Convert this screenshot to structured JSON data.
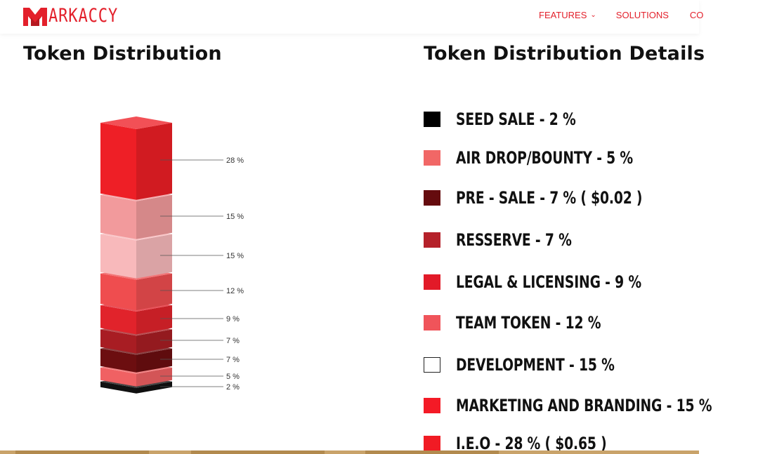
{
  "header": {
    "logo_text": "ARKACCY",
    "brand_color": "#e3202b",
    "nav": [
      {
        "label": "FEATURES",
        "has_dropdown": true
      },
      {
        "label": "SOLUTIONS"
      },
      {
        "label": "CO"
      }
    ]
  },
  "left_title": "Token Distribution",
  "right_title": "Token Distribution Details",
  "chart_data": {
    "type": "bar",
    "subtype": "stacked-3d-column",
    "categories": [
      "Token Distribution"
    ],
    "title": "Token Distribution",
    "segments": [
      {
        "label": "28 %",
        "value": 28,
        "color": "#ee1f26"
      },
      {
        "label": "15 %",
        "value": 15,
        "color": "#f29a9c"
      },
      {
        "label": "15 %",
        "value": 15,
        "color": "#f8b9bb"
      },
      {
        "label": "12 %",
        "value": 12,
        "color": "#ef4d4f"
      },
      {
        "label": "9 %",
        "value": 9,
        "color": "#e1232b"
      },
      {
        "label": "7 %",
        "value": 7,
        "color": "#a81d23"
      },
      {
        "label": "7 %",
        "value": 7,
        "color": "#6c0e10"
      },
      {
        "label": "5 %",
        "value": 5,
        "color": "#f06163"
      },
      {
        "label": "2 %",
        "value": 2,
        "color": "#111111"
      }
    ]
  },
  "legend": [
    {
      "label": "SEED SALE - 2 %",
      "color": "#000000"
    },
    {
      "label": "AIR DROP/BOUNTY - 5 %",
      "color": "#f16766"
    },
    {
      "label": "PRE - SALE - 7 % ( $0.02 )",
      "color": "#650b0e"
    },
    {
      "label": "RESSERVE - 7 %",
      "color": "#b5212a"
    },
    {
      "label": "LEGAL & LICENSING - 9 %",
      "color": "#e21a28"
    },
    {
      "label": "TEAM TOKEN - 12 %",
      "color": "#f0545a"
    },
    {
      "label": "DEVELOPMENT - 15 %",
      "color": "#ffffff"
    },
    {
      "label": "MARKETING AND BRANDING - 15 %",
      "color": "#f41a26"
    },
    {
      "label": "I.E.O - 28 % ( $0.65 )",
      "color": "#f11b24"
    }
  ]
}
